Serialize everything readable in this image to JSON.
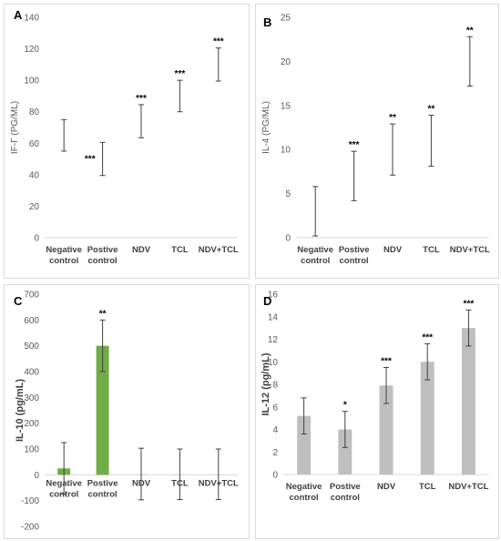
{
  "chart_data": [
    {
      "panel_label": "A",
      "type": "error-bar",
      "ylabel": "IF-Γ (PG/ML)",
      "ylabel_bold": false,
      "ylim": [
        0,
        140
      ],
      "yticks": [
        0,
        20,
        40,
        60,
        80,
        100,
        120,
        140
      ],
      "categories": [
        [
          "Negative",
          "control"
        ],
        [
          "Postive",
          "control"
        ],
        [
          "NDV"
        ],
        [
          "TCL"
        ],
        [
          "NDV+TCL"
        ]
      ],
      "values": [
        65,
        50,
        74,
        90,
        110
      ],
      "error": [
        10,
        10.5,
        10.5,
        10,
        10.5
      ],
      "significance": [
        "",
        "***",
        "***",
        "***",
        "***"
      ],
      "sig_side": "left"
    },
    {
      "panel_label": "B",
      "type": "error-bar",
      "ylabel": "IL-4 (PG/ML)",
      "ylabel_bold": false,
      "ylim": [
        0,
        25
      ],
      "yticks": [
        0,
        5,
        10,
        15,
        20,
        25
      ],
      "categories": [
        [
          "Negative",
          "control"
        ],
        [
          "Postive",
          "control"
        ],
        [
          "NDV"
        ],
        [
          "TCL"
        ],
        [
          "NDV+TCL"
        ]
      ],
      "values": [
        3.0,
        7.0,
        10.0,
        11.0,
        20.0
      ],
      "error": [
        2.8,
        2.8,
        2.9,
        2.9,
        2.8
      ],
      "significance": [
        "",
        "***",
        "**",
        "**",
        "**"
      ],
      "sig_side": "top"
    },
    {
      "panel_label": "C",
      "type": "bar",
      "ylabel": "IL-10 (pg/mL)",
      "ylabel_bold": true,
      "ylim": [
        -200,
        700
      ],
      "yticks": [
        -200,
        -100,
        0,
        100,
        200,
        300,
        400,
        500,
        600,
        700
      ],
      "categories": [
        [
          "Negative",
          "control"
        ],
        [
          "Postive",
          "control"
        ],
        [
          "NDV"
        ],
        [
          "TCL"
        ],
        [
          "NDV+TCL"
        ]
      ],
      "values": [
        25,
        500,
        3,
        2,
        2
      ],
      "error": [
        100,
        100,
        100,
        98,
        98
      ],
      "significance": [
        "",
        "**",
        "",
        "",
        ""
      ],
      "bar_colors": [
        "#70ad47",
        "#70ad47",
        "#d9d9d9",
        "#d9d9d9",
        "#d9d9d9"
      ],
      "sig_side": "top"
    },
    {
      "panel_label": "D",
      "type": "bar",
      "ylabel": "IL-12 (pg/mL)",
      "ylabel_bold": true,
      "ylim": [
        0,
        16
      ],
      "yticks": [
        0,
        2,
        4,
        6,
        8,
        10,
        12,
        14,
        16
      ],
      "categories": [
        [
          "Negative",
          "control"
        ],
        [
          "Postive",
          "control"
        ],
        [
          "NDV"
        ],
        [
          "TCL"
        ],
        [
          "NDV+TCL"
        ]
      ],
      "values": [
        5.2,
        4.0,
        7.9,
        10.0,
        13.0
      ],
      "error": [
        1.6,
        1.6,
        1.6,
        1.6,
        1.6
      ],
      "significance": [
        "",
        "*",
        "***",
        "***",
        "***"
      ],
      "bar_colors": [
        "#bfbfbf",
        "#bfbfbf",
        "#bfbfbf",
        "#bfbfbf",
        "#bfbfbf"
      ],
      "sig_side": "top"
    }
  ]
}
